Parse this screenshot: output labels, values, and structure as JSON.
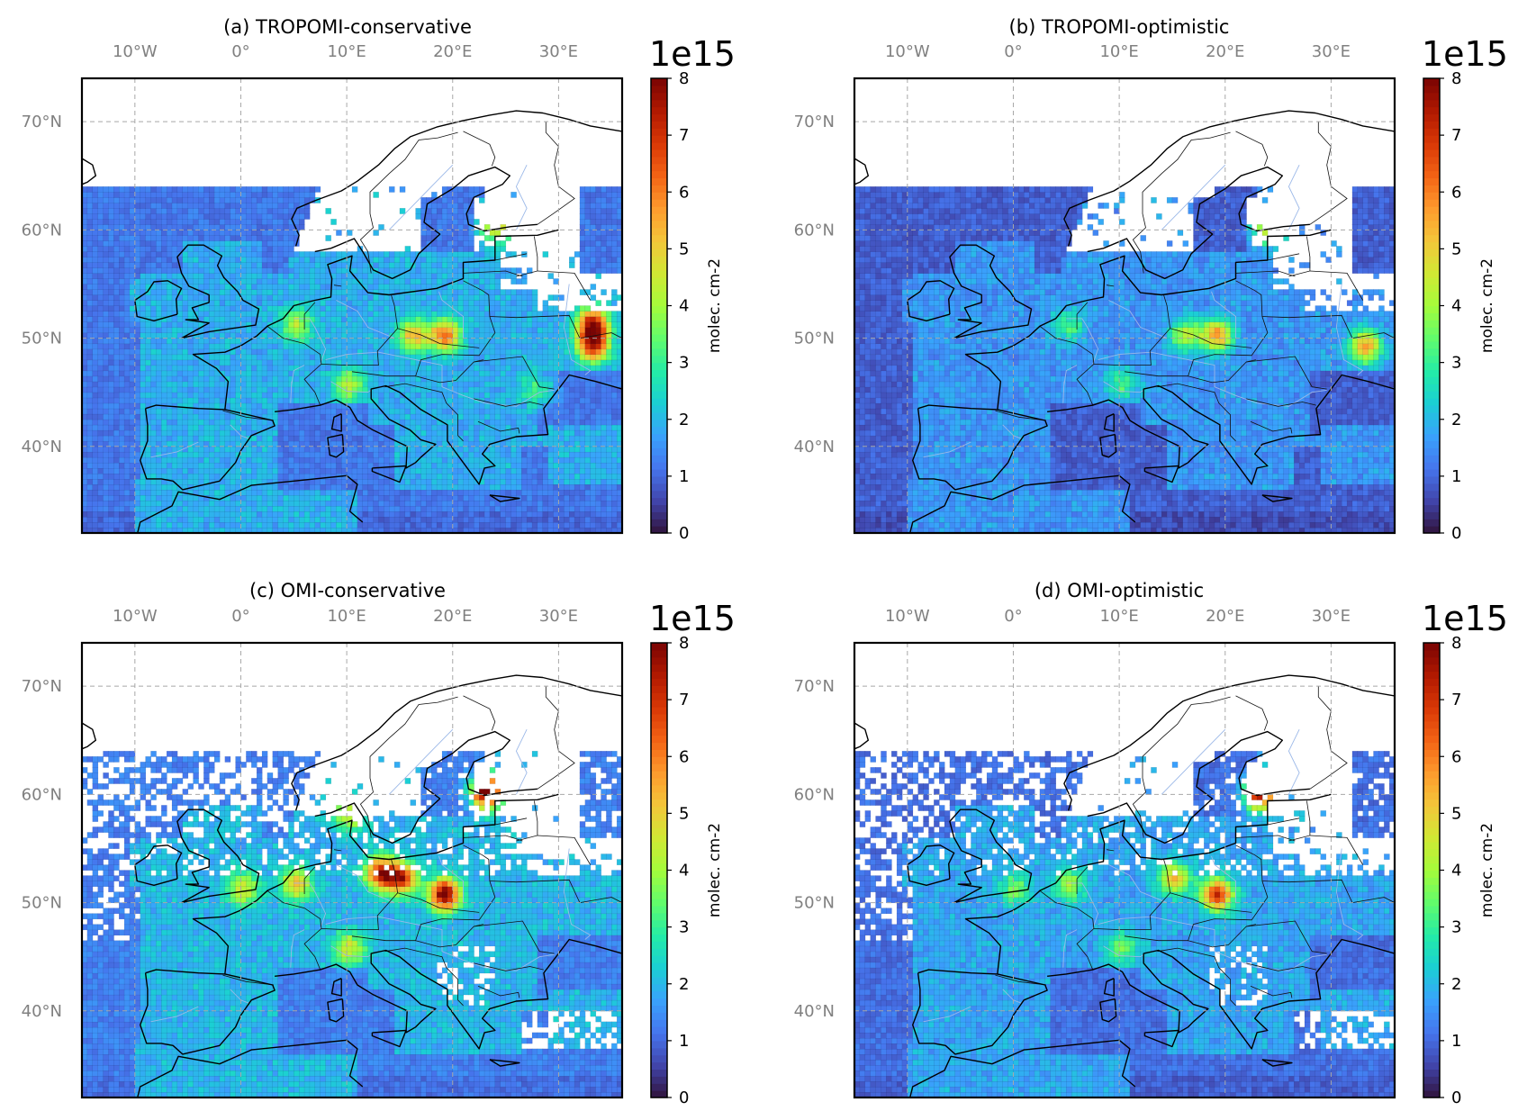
{
  "figure": {
    "colorbar": {
      "min": 0,
      "max": 8,
      "ticks": [
        "0",
        "1",
        "2",
        "3",
        "4",
        "5",
        "6",
        "7",
        "8"
      ],
      "exponent": "1e15",
      "label": "molec. cm-2",
      "colormap": [
        "#30123b",
        "#4145ab",
        "#4675ed",
        "#39a2fc",
        "#1bcfd4",
        "#24eca6",
        "#61fc6c",
        "#a4fc3b",
        "#d1e834",
        "#f3c63a",
        "#fe9b2d",
        "#f36315",
        "#d93806",
        "#b11901",
        "#7a0403"
      ]
    },
    "map": {
      "lon_range": [
        -15,
        36
      ],
      "lat_range": [
        32,
        74
      ],
      "lon_ticks": [
        "10°W",
        "0°",
        "10°E",
        "20°E",
        "30°E"
      ],
      "lat_ticks": [
        "70°N",
        "60°N",
        "50°N",
        "40°N"
      ],
      "grid": true
    }
  },
  "chart_data": [
    {
      "type": "heatmap",
      "title": "(a) TROPOMI-conservative",
      "description_hotspots": [
        {
          "lon": 19,
          "lat": 50,
          "value": 5.5
        },
        {
          "lon": 16,
          "lat": 50,
          "value": 4.5
        },
        {
          "lon": 10,
          "lat": 45.5,
          "value": 3.5
        },
        {
          "lon": 5,
          "lat": 51,
          "value": 3.5
        },
        {
          "lon": 33,
          "lat": 49,
          "value": 6.0
        },
        {
          "lon": 33,
          "lat": 51,
          "value": 7.0
        },
        {
          "lon": 24,
          "lat": 60,
          "value": 4.0
        },
        {
          "lon": 28,
          "lat": 45,
          "value": 3.0
        }
      ],
      "background_value": 1.2,
      "coverage": "good"
    },
    {
      "type": "heatmap",
      "title": "(b) TROPOMI-optimistic",
      "description_hotspots": [
        {
          "lon": 19,
          "lat": 50,
          "value": 5.0
        },
        {
          "lon": 16,
          "lat": 50,
          "value": 3.5
        },
        {
          "lon": 10,
          "lat": 45.5,
          "value": 2.5
        },
        {
          "lon": 5,
          "lat": 51,
          "value": 2.5
        },
        {
          "lon": 33,
          "lat": 49,
          "value": 5.0
        },
        {
          "lon": 24,
          "lat": 60,
          "value": 4.5
        }
      ],
      "background_value": 0.9,
      "coverage": "good"
    },
    {
      "type": "heatmap",
      "title": "(c) OMI-conservative",
      "description_hotspots": [
        {
          "lon": 19,
          "lat": 50.5,
          "value": 7.5
        },
        {
          "lon": 15,
          "lat": 52,
          "value": 6.0
        },
        {
          "lon": 13,
          "lat": 52.5,
          "value": 6.5
        },
        {
          "lon": 5,
          "lat": 51.5,
          "value": 4.5
        },
        {
          "lon": 0,
          "lat": 51,
          "value": 4.0
        },
        {
          "lon": 10,
          "lat": 45.5,
          "value": 4.0
        },
        {
          "lon": 10,
          "lat": 58,
          "value": 4.0
        },
        {
          "lon": 23,
          "lat": 60,
          "value": 8.0
        }
      ],
      "background_value": 1.3,
      "coverage": "sparse"
    },
    {
      "type": "heatmap",
      "title": "(d) OMI-optimistic",
      "description_hotspots": [
        {
          "lon": 19,
          "lat": 50.5,
          "value": 6.5
        },
        {
          "lon": 15,
          "lat": 52,
          "value": 4.5
        },
        {
          "lon": 5,
          "lat": 51.5,
          "value": 3.5
        },
        {
          "lon": 0,
          "lat": 51,
          "value": 3.0
        },
        {
          "lon": 10,
          "lat": 45.5,
          "value": 3.0
        },
        {
          "lon": 23,
          "lat": 60,
          "value": 7.5
        }
      ],
      "background_value": 1.1,
      "coverage": "sparse"
    }
  ]
}
